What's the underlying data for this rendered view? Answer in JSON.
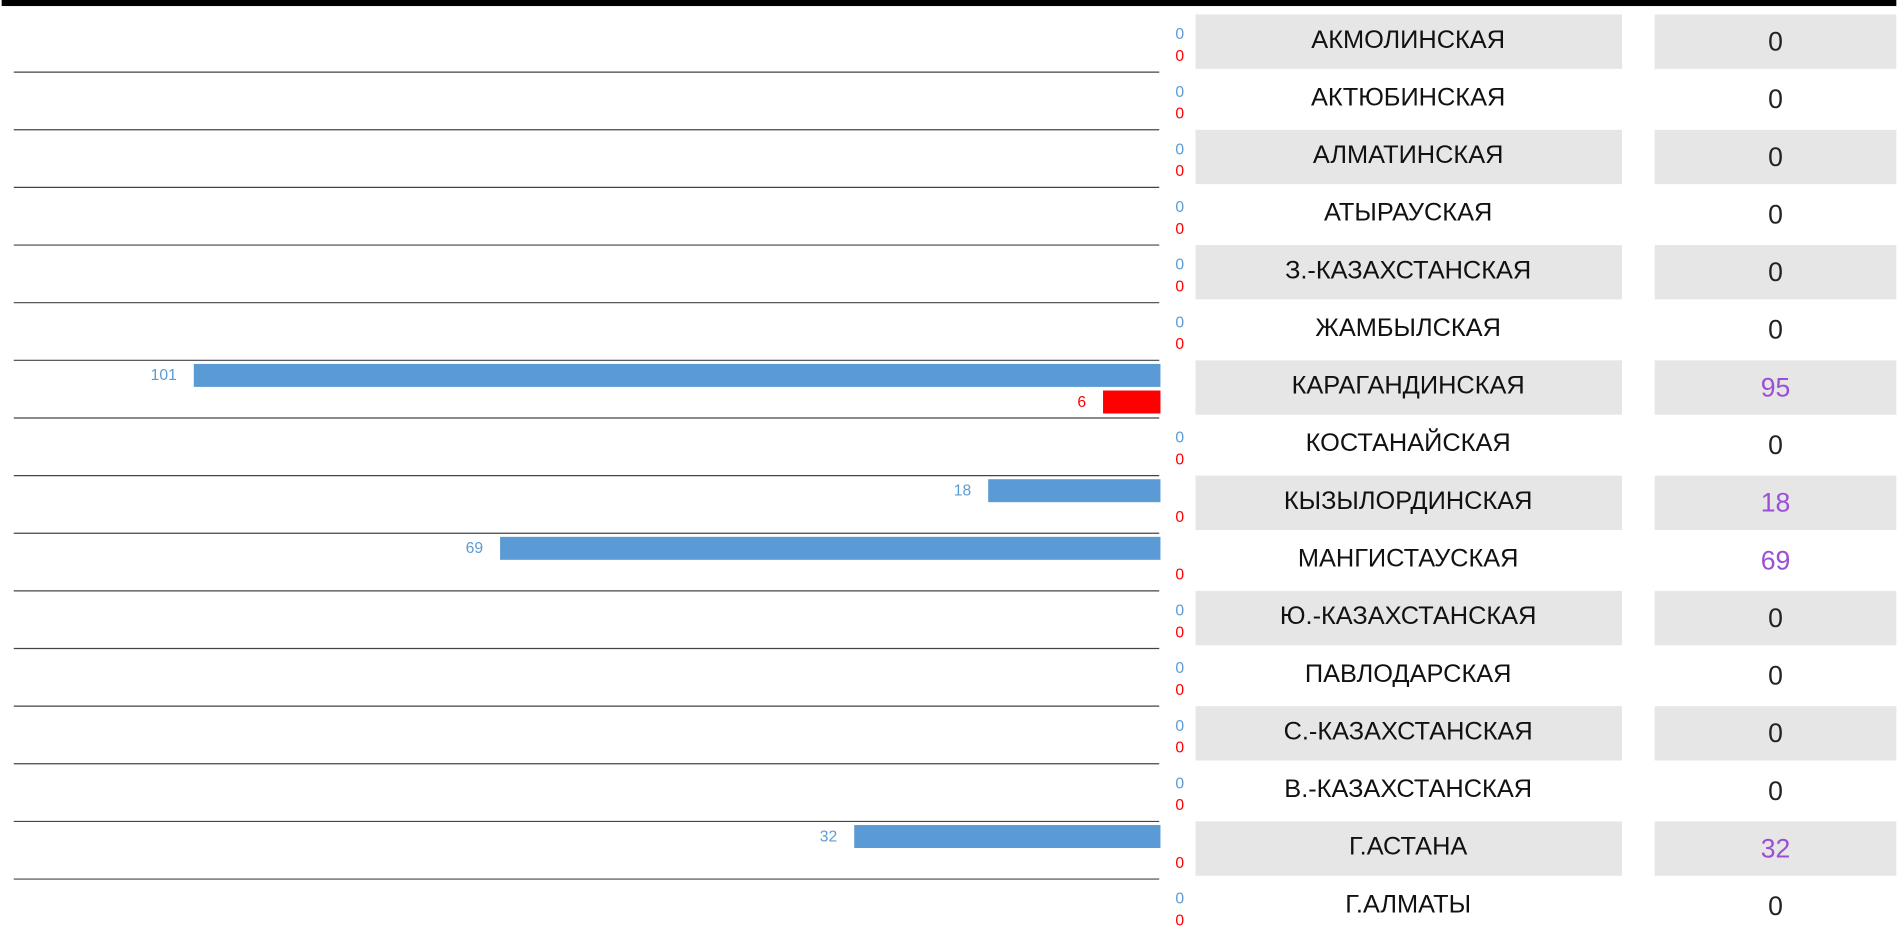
{
  "rows": [
    {
      "region": "АКМОЛИНСКАЯ",
      "blue": 0,
      "red": 0,
      "total": 0
    },
    {
      "region": "АКТЮБИНСКАЯ",
      "blue": 0,
      "red": 0,
      "total": 0
    },
    {
      "region": "АЛМАТИНСКАЯ",
      "blue": 0,
      "red": 0,
      "total": 0
    },
    {
      "region": "АТЫРАУСКАЯ",
      "blue": 0,
      "red": 0,
      "total": 0
    },
    {
      "region": "З.-КАЗАХСТАНСКАЯ",
      "blue": 0,
      "red": 0,
      "total": 0
    },
    {
      "region": "ЖАМБЫЛСКАЯ",
      "blue": 0,
      "red": 0,
      "total": 0
    },
    {
      "region": "КАРАГАНДИНСКАЯ",
      "blue": 101,
      "red": 6,
      "total": 95
    },
    {
      "region": "КОСТАНАЙСКАЯ",
      "blue": 0,
      "red": 0,
      "total": 0
    },
    {
      "region": "КЫЗЫЛОРДИНСКАЯ",
      "blue": 18,
      "red": 0,
      "total": 18
    },
    {
      "region": "МАНГИСТАУСКАЯ",
      "blue": 69,
      "red": 0,
      "total": 69
    },
    {
      "region": "Ю.-КАЗАХСТАНСКАЯ",
      "blue": 0,
      "red": 0,
      "total": 0
    },
    {
      "region": "ПАВЛОДАРСКАЯ",
      "blue": 0,
      "red": 0,
      "total": 0
    },
    {
      "region": "С.-КАЗАХСТАНСКАЯ",
      "blue": 0,
      "red": 0,
      "total": 0
    },
    {
      "region": "В.-КАЗАХСТАНСКАЯ",
      "blue": 0,
      "red": 0,
      "total": 0
    },
    {
      "region": "Г.АСТАНА",
      "blue": 32,
      "red": 0,
      "total": 32
    },
    {
      "region": "Г.АЛМАТЫ",
      "blue": 0,
      "red": 0,
      "total": 0
    }
  ]
}
